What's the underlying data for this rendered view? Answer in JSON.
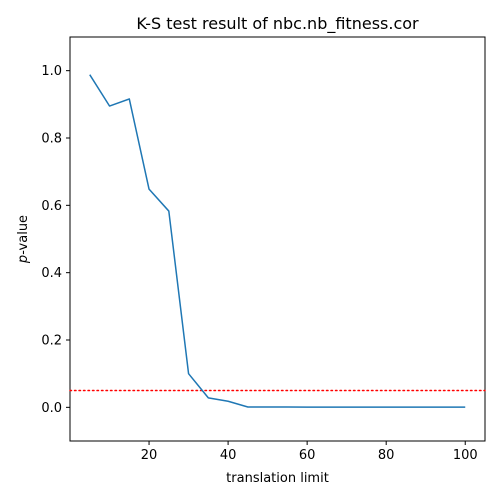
{
  "chart_data": {
    "type": "line",
    "title": "K-S test result of nbc.nb_fitness.cor",
    "xlabel": "translation limit",
    "ylabel_italic": "p",
    "ylabel_rest": "-value",
    "xlim": [
      0,
      105
    ],
    "ylim": [
      -0.1,
      1.1
    ],
    "xticks": [
      20,
      40,
      60,
      80,
      100
    ],
    "yticks": [
      0.0,
      0.2,
      0.4,
      0.6,
      0.8,
      1.0
    ],
    "x": [
      5,
      10,
      15,
      20,
      25,
      30,
      35,
      40,
      45,
      50,
      55,
      60,
      65,
      70,
      75,
      80,
      85,
      90,
      95,
      100
    ],
    "series": [
      {
        "values": [
          0.988,
          0.895,
          0.916,
          0.648,
          0.583,
          0.1,
          0.028,
          0.018,
          0.001,
          0.001,
          0.0008,
          0.0005,
          0.0005,
          0.0005,
          0.0005,
          0.0005,
          0.0005,
          0.0005,
          0.0005,
          0.0005
        ],
        "color": "#1f77b4"
      }
    ],
    "threshold": {
      "value": 0.05,
      "color": "#ff0000",
      "style": "dotted"
    },
    "grid": false,
    "legend": "none"
  }
}
